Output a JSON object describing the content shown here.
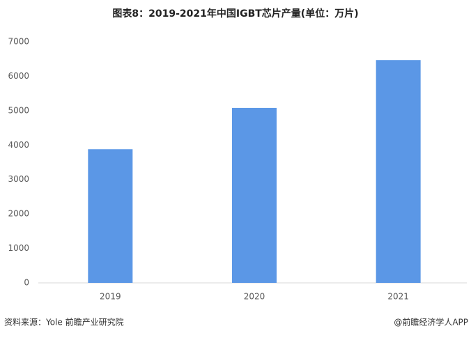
{
  "chart_data": {
    "type": "bar",
    "title": "图表8：2019-2021年中国IGBT芯片产量(单位：万片)",
    "categories": [
      "2019",
      "2020",
      "2021"
    ],
    "values": [
      3880,
      5080,
      6470
    ],
    "color": "#5b97e6",
    "ylim": [
      0,
      7000
    ],
    "yticks": [
      0,
      1000,
      2000,
      3000,
      4000,
      5000,
      6000,
      7000
    ],
    "grid": false
  },
  "footer": {
    "source": "资料来源：Yole 前瞻产业研究院",
    "credit": "@前瞻经济学人APP"
  }
}
